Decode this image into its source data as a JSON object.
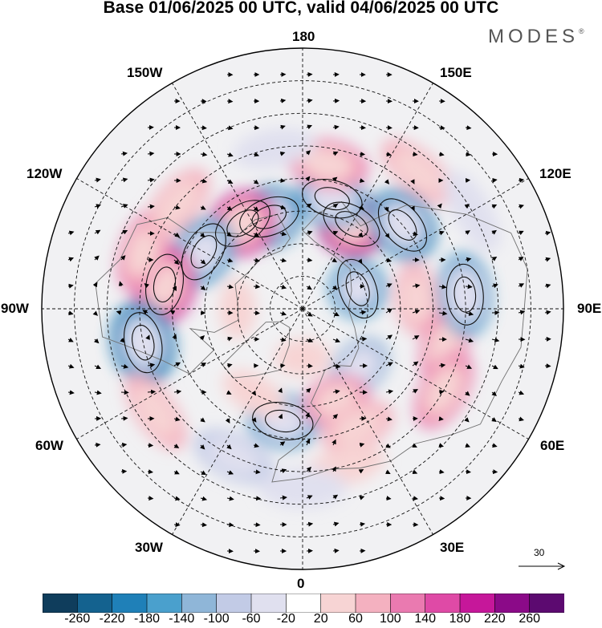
{
  "title": "Base 01/06/2025 00 UTC, valid 04/06/2025 00 UTC",
  "brand": "MODES",
  "brand_mark": "®",
  "longitude_labels": {
    "north": "180",
    "south": "0",
    "east": "90E",
    "west": "90W",
    "nne": "150E",
    "ene": "120E",
    "ese": "60E",
    "sse": "30E",
    "nnw": "150W",
    "wnw": "120W",
    "wsw": "60W",
    "ssw": "30W"
  },
  "vector_scale": {
    "value": "30",
    "icon": "arrow-right-icon"
  },
  "colorbar": {
    "ticks": [
      "-260",
      "-220",
      "-180",
      "-140",
      "-100",
      "-60",
      "-20",
      "20",
      "60",
      "100",
      "140",
      "180",
      "220",
      "260"
    ],
    "colors": [
      "#0f3d5c",
      "#14628f",
      "#1f80b8",
      "#4aa0cd",
      "#8fb6d8",
      "#c2cbe6",
      "#e0e0ef",
      "#ffffff",
      "#f7d4d4",
      "#f4b1c0",
      "#ea7ab0",
      "#df4aa6",
      "#c6179a",
      "#8b0a88",
      "#5c0a70"
    ]
  },
  "anomalies": [
    {
      "lon": 150,
      "lat": 60,
      "value": 220
    },
    {
      "lon": 165,
      "lat": 55,
      "value": -170
    },
    {
      "lon": 170,
      "lat": 45,
      "value": 120
    },
    {
      "lon": -160,
      "lat": 60,
      "value": -200
    },
    {
      "lon": -145,
      "lat": 58,
      "value": 210
    },
    {
      "lon": -120,
      "lat": 55,
      "value": -180
    },
    {
      "lon": -100,
      "lat": 47,
      "value": 200
    },
    {
      "lon": -110,
      "lat": 38,
      "value": 100
    },
    {
      "lon": -78,
      "lat": 40,
      "value": -220
    },
    {
      "lon": -55,
      "lat": 35,
      "value": 60
    },
    {
      "lon": -10,
      "lat": 55,
      "value": -160
    },
    {
      "lon": -25,
      "lat": 40,
      "value": -90
    },
    {
      "lon": 130,
      "lat": 50,
      "value": -200
    },
    {
      "lon": 110,
      "lat": 72,
      "value": -180
    },
    {
      "lon": 95,
      "lat": 55,
      "value": 80
    },
    {
      "lon": 75,
      "lat": 45,
      "value": 100
    },
    {
      "lon": 95,
      "lat": 40,
      "value": -150
    },
    {
      "lon": 60,
      "lat": 40,
      "value": 100
    },
    {
      "lon": 45,
      "lat": 65,
      "value": -120
    },
    {
      "lon": 20,
      "lat": 60,
      "value": 120
    },
    {
      "lon": 25,
      "lat": 50,
      "value": 80
    },
    {
      "lon": 15,
      "lat": 40,
      "value": 40
    },
    {
      "lon": 0,
      "lat": 35,
      "value": -60
    },
    {
      "lon": -30,
      "lat": 60,
      "value": 40
    },
    {
      "lon": -170,
      "lat": 40,
      "value": -40
    },
    {
      "lon": 140,
      "lat": 35,
      "value": 60
    },
    {
      "lon": -130,
      "lat": 40,
      "value": 80
    },
    {
      "lon": 120,
      "lat": 30,
      "value": -40
    },
    {
      "lon": -90,
      "lat": 70,
      "value": 30
    },
    {
      "lon": 0,
      "lat": 75,
      "value": 40
    }
  ]
}
